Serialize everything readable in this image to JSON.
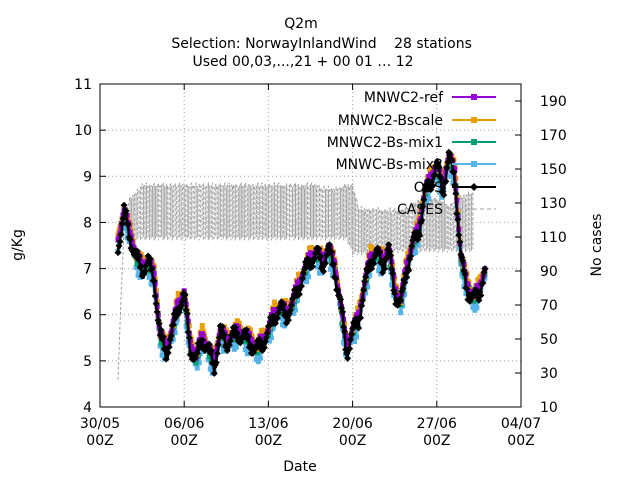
{
  "chart_data": {
    "type": "line",
    "title": "Q2m",
    "subtitle": "Selection: NorwayInlandWind",
    "stations_text": "28 stations",
    "used_text": "Used 00,03,...,21 + 00 01 … 12",
    "xlabel": "Date",
    "ylabel": "g/Kg",
    "y2label": "No cases",
    "x_range": [
      "2023-05-30 00:00",
      "2023-07-04 00:00"
    ],
    "ylim": [
      4,
      11
    ],
    "y2lim": [
      10,
      200
    ],
    "x_ticks": [
      {
        "date": "2023-05-30",
        "label1": "30/05",
        "label2": "00Z"
      },
      {
        "date": "2023-06-06",
        "label1": "06/06",
        "label2": "00Z"
      },
      {
        "date": "2023-06-13",
        "label1": "13/06",
        "label2": "00Z"
      },
      {
        "date": "2023-06-20",
        "label1": "20/06",
        "label2": "00Z"
      },
      {
        "date": "2023-06-27",
        "label1": "27/06",
        "label2": "00Z"
      },
      {
        "date": "2023-07-04",
        "label1": "04/07",
        "label2": "00Z"
      }
    ],
    "y_ticks": [
      4,
      5,
      6,
      7,
      8,
      9,
      10,
      11
    ],
    "y2_ticks": [
      10,
      30,
      50,
      70,
      90,
      110,
      130,
      150,
      170,
      190
    ],
    "grid": true,
    "legend_position": "top-right",
    "series": [
      {
        "name": "MNWC2-ref",
        "color": "#9400d3",
        "marker": "square",
        "axis": "left"
      },
      {
        "name": "MNWC2-Bscale",
        "color": "#e69f00",
        "marker": "square",
        "axis": "left"
      },
      {
        "name": "MNWC2-Bs-mix1",
        "color": "#009e73",
        "marker": "square",
        "axis": "left"
      },
      {
        "name": "MNWC-Bs-mix2",
        "color": "#56b4e9",
        "marker": "square",
        "axis": "left"
      },
      {
        "name": "OBS",
        "color": "#000000",
        "marker": "diamond",
        "axis": "left"
      },
      {
        "name": "CASES",
        "color": "#a0a0a0",
        "marker": "none",
        "dash": true,
        "axis": "right"
      }
    ],
    "obs_points": [
      [
        "2023-05-31 12:00",
        7.5
      ],
      [
        "2023-06-01 00:00",
        8.2
      ],
      [
        "2023-06-01 12:00",
        7.7
      ],
      [
        "2023-06-02 00:00",
        7.2
      ],
      [
        "2023-06-02 12:00",
        7.0
      ],
      [
        "2023-06-03 00:00",
        7.1
      ],
      [
        "2023-06-03 12:00",
        6.8
      ],
      [
        "2023-06-04 00:00",
        5.5
      ],
      [
        "2023-06-04 12:00",
        5.2
      ],
      [
        "2023-06-05 00:00",
        5.6
      ],
      [
        "2023-06-05 12:00",
        6.2
      ],
      [
        "2023-06-06 00:00",
        6.4
      ],
      [
        "2023-06-06 12:00",
        5.3
      ],
      [
        "2023-06-07 00:00",
        5.0
      ],
      [
        "2023-06-07 12:00",
        5.5
      ],
      [
        "2023-06-08 00:00",
        5.2
      ],
      [
        "2023-06-08 12:00",
        4.9
      ],
      [
        "2023-06-09 00:00",
        5.6
      ],
      [
        "2023-06-09 12:00",
        5.4
      ],
      [
        "2023-06-10 00:00",
        5.5
      ],
      [
        "2023-06-10 12:00",
        5.6
      ],
      [
        "2023-06-11 00:00",
        5.5
      ],
      [
        "2023-06-11 12:00",
        5.4
      ],
      [
        "2023-06-12 00:00",
        5.2
      ],
      [
        "2023-06-12 12:00",
        5.4
      ],
      [
        "2023-06-13 00:00",
        5.6
      ],
      [
        "2023-06-13 12:00",
        6.0
      ],
      [
        "2023-06-14 00:00",
        6.1
      ],
      [
        "2023-06-14 12:00",
        6.0
      ],
      [
        "2023-06-15 00:00",
        6.2
      ],
      [
        "2023-06-15 12:00",
        6.6
      ],
      [
        "2023-06-16 00:00",
        6.9
      ],
      [
        "2023-06-16 12:00",
        7.2
      ],
      [
        "2023-06-17 00:00",
        7.3
      ],
      [
        "2023-06-17 12:00",
        7.1
      ],
      [
        "2023-06-18 00:00",
        7.4
      ],
      [
        "2023-06-18 12:00",
        7.0
      ],
      [
        "2023-06-19 00:00",
        6.2
      ],
      [
        "2023-06-19 12:00",
        5.2
      ],
      [
        "2023-06-20 00:00",
        5.6
      ],
      [
        "2023-06-20 12:00",
        5.9
      ],
      [
        "2023-06-21 00:00",
        6.6
      ],
      [
        "2023-06-21 12:00",
        7.2
      ],
      [
        "2023-06-22 00:00",
        7.3
      ],
      [
        "2023-06-22 12:00",
        7.1
      ],
      [
        "2023-06-23 00:00",
        7.4
      ],
      [
        "2023-06-23 12:00",
        6.5
      ],
      [
        "2023-06-24 00:00",
        6.2
      ],
      [
        "2023-06-24 12:00",
        7.0
      ],
      [
        "2023-06-25 00:00",
        7.5
      ],
      [
        "2023-06-25 12:00",
        7.8
      ],
      [
        "2023-06-26 00:00",
        8.6
      ],
      [
        "2023-06-26 12:00",
        8.9
      ],
      [
        "2023-06-27 00:00",
        9.2
      ],
      [
        "2023-06-27 12:00",
        8.7
      ],
      [
        "2023-06-28 00:00",
        9.4
      ],
      [
        "2023-06-28 12:00",
        9.0
      ],
      [
        "2023-06-29 00:00",
        7.2
      ],
      [
        "2023-06-29 12:00",
        6.6
      ],
      [
        "2023-06-30 00:00",
        6.3
      ],
      [
        "2023-06-30 12:00",
        6.5
      ],
      [
        "2023-07-01 00:00",
        6.9
      ]
    ],
    "cases_points": [
      [
        "2023-05-31 12:00",
        28
      ],
      [
        "2023-06-01 00:00",
        118
      ],
      [
        "2023-06-01 12:00",
        132
      ],
      [
        "2023-06-02 12:00",
        140
      ],
      [
        "2023-06-10 00:00",
        140
      ],
      [
        "2023-06-17 00:00",
        140
      ],
      [
        "2023-06-17 12:00",
        138
      ],
      [
        "2023-06-19 00:00",
        138
      ],
      [
        "2023-06-19 12:00",
        140
      ],
      [
        "2023-06-20 00:00",
        140
      ],
      [
        "2023-06-20 12:00",
        126
      ],
      [
        "2023-06-24 00:00",
        125
      ],
      [
        "2023-06-26 00:00",
        133
      ],
      [
        "2023-06-27 00:00",
        132
      ],
      [
        "2023-06-28 00:00",
        128
      ],
      [
        "2023-06-29 12:00",
        135
      ],
      [
        "2023-06-30 00:00",
        135
      ]
    ],
    "cases_band_low": [
      [
        "2023-06-01 12:00",
        108
      ],
      [
        "2023-06-19 12:00",
        108
      ],
      [
        "2023-06-20 00:00",
        99
      ],
      [
        "2023-06-25 00:00",
        101
      ],
      [
        "2023-06-30 00:00",
        101
      ]
    ]
  }
}
